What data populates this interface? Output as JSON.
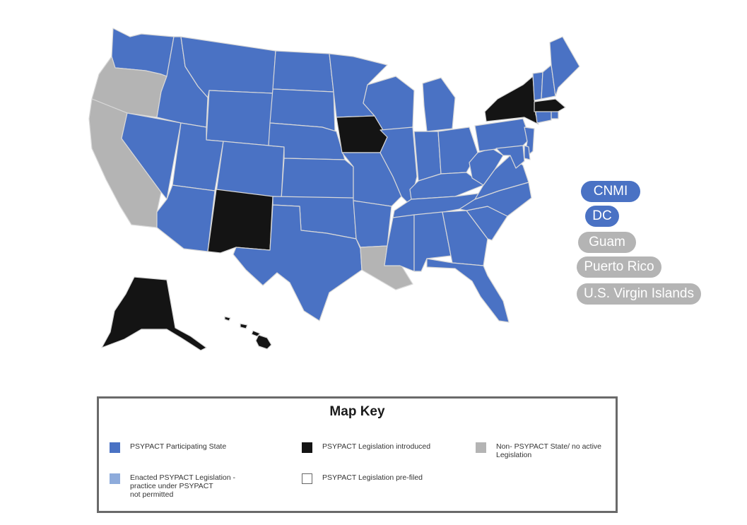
{
  "colors": {
    "participating": "#4a72c4",
    "enacted_not_permitted": "#8eabdb",
    "introduced": "#141414",
    "prefiled": "#ffffff",
    "non_psypact": "#b4b4b4"
  },
  "territories": [
    {
      "label": "CNMI",
      "status": "participating"
    },
    {
      "label": "DC",
      "status": "participating"
    },
    {
      "label": "Guam",
      "status": "non_psypact"
    },
    {
      "label": "Puerto Rico",
      "status": "non_psypact"
    },
    {
      "label": "U.S. Virgin Islands",
      "status": "non_psypact"
    }
  ],
  "map_key": {
    "title": "Map Key",
    "items": [
      {
        "status": "participating",
        "label": "PSYPACT Participating State"
      },
      {
        "status": "introduced",
        "label": "PSYPACT Legislation introduced"
      },
      {
        "status": "non_psypact",
        "label": "Non- PSYPACT State/ no active\nLegislation"
      },
      {
        "status": "enacted_not_permitted",
        "label": "Enacted  PSYPACT Legislation -\npractice under PSYPACT\nnot permitted"
      },
      {
        "status": "prefiled",
        "label": "PSYPACT Legislation pre-filed"
      }
    ]
  },
  "states": [
    {
      "name": "WA",
      "status": "participating"
    },
    {
      "name": "OR",
      "status": "non_psypact"
    },
    {
      "name": "CA",
      "status": "non_psypact"
    },
    {
      "name": "NV",
      "status": "participating"
    },
    {
      "name": "ID",
      "status": "participating"
    },
    {
      "name": "MT",
      "status": "participating"
    },
    {
      "name": "WY",
      "status": "participating"
    },
    {
      "name": "UT",
      "status": "participating"
    },
    {
      "name": "AZ",
      "status": "participating"
    },
    {
      "name": "CO",
      "status": "participating"
    },
    {
      "name": "NM",
      "status": "introduced"
    },
    {
      "name": "ND",
      "status": "participating"
    },
    {
      "name": "SD",
      "status": "participating"
    },
    {
      "name": "NE",
      "status": "participating"
    },
    {
      "name": "KS",
      "status": "participating"
    },
    {
      "name": "OK",
      "status": "participating"
    },
    {
      "name": "TX",
      "status": "participating"
    },
    {
      "name": "MN",
      "status": "participating"
    },
    {
      "name": "IA",
      "status": "introduced"
    },
    {
      "name": "MO",
      "status": "participating"
    },
    {
      "name": "AR",
      "status": "participating"
    },
    {
      "name": "LA",
      "status": "non_psypact"
    },
    {
      "name": "WI",
      "status": "participating"
    },
    {
      "name": "IL",
      "status": "participating"
    },
    {
      "name": "MI",
      "status": "participating"
    },
    {
      "name": "IN",
      "status": "participating"
    },
    {
      "name": "OH",
      "status": "participating"
    },
    {
      "name": "KY",
      "status": "participating"
    },
    {
      "name": "TN",
      "status": "participating"
    },
    {
      "name": "MS",
      "status": "participating"
    },
    {
      "name": "AL",
      "status": "participating"
    },
    {
      "name": "GA",
      "status": "participating"
    },
    {
      "name": "FL",
      "status": "participating"
    },
    {
      "name": "SC",
      "status": "participating"
    },
    {
      "name": "NC",
      "status": "participating"
    },
    {
      "name": "VA",
      "status": "participating"
    },
    {
      "name": "WV",
      "status": "participating"
    },
    {
      "name": "PA",
      "status": "participating"
    },
    {
      "name": "NY",
      "status": "introduced"
    },
    {
      "name": "VT",
      "status": "participating"
    },
    {
      "name": "NH",
      "status": "participating"
    },
    {
      "name": "ME",
      "status": "participating"
    },
    {
      "name": "MA",
      "status": "introduced"
    },
    {
      "name": "RI",
      "status": "participating"
    },
    {
      "name": "CT",
      "status": "participating"
    },
    {
      "name": "NJ",
      "status": "participating"
    },
    {
      "name": "DE",
      "status": "participating"
    },
    {
      "name": "MD",
      "status": "participating"
    },
    {
      "name": "AK",
      "status": "introduced"
    },
    {
      "name": "HI",
      "status": "introduced"
    }
  ]
}
